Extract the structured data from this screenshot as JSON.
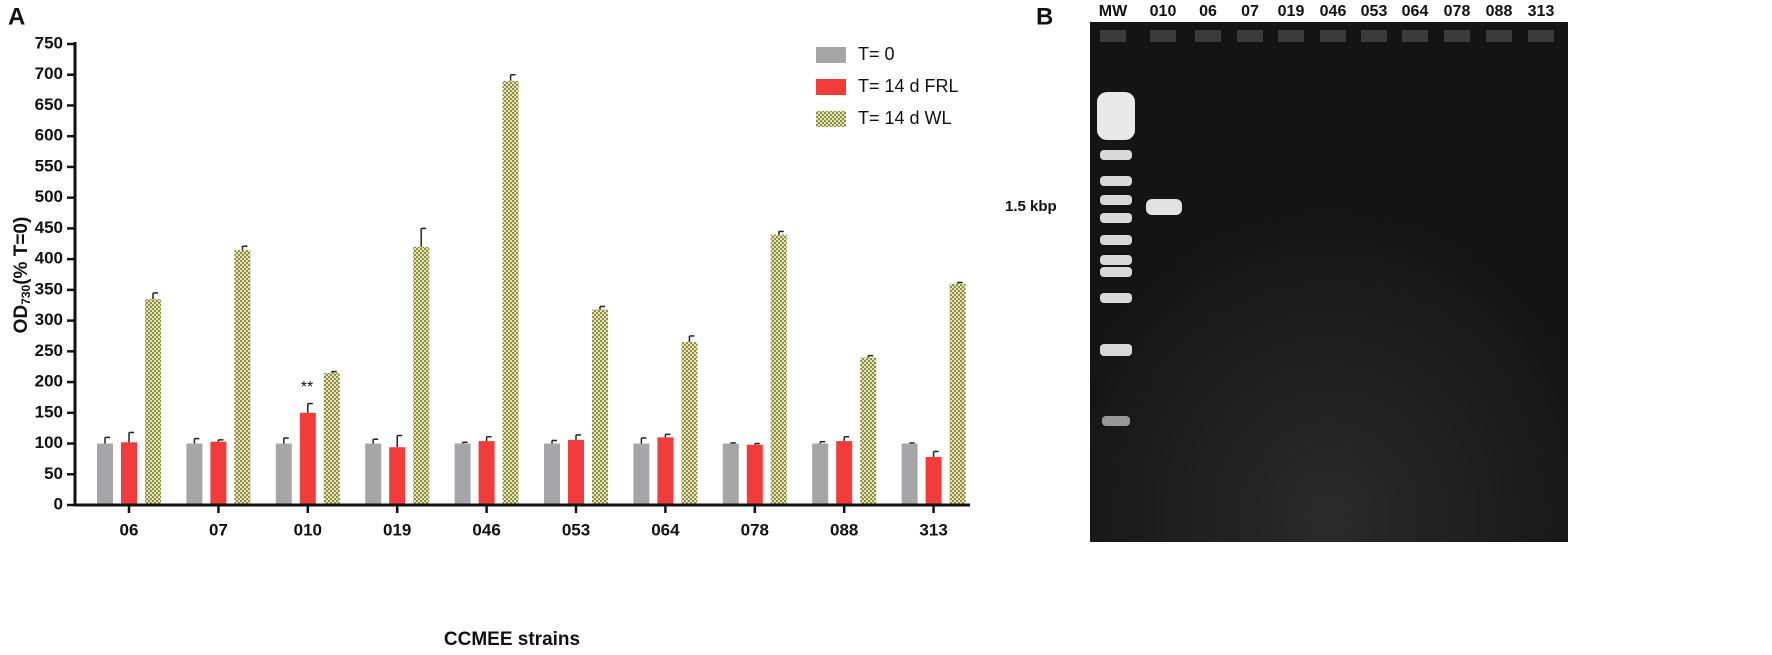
{
  "chart_data": {
    "type": "bar",
    "panel_label": "A",
    "ylabel": "OD",
    "ylabel_sub": "730",
    "ylabel_suffix": "(% T=0)",
    "xlabel": "CCMEE strains",
    "categories": [
      "06",
      "07",
      "010",
      "019",
      "046",
      "053",
      "064",
      "078",
      "088",
      "313"
    ],
    "series": [
      {
        "name": "T= 0",
        "color": "#a6a6a9",
        "values": [
          100,
          100,
          100,
          100,
          100,
          100,
          100,
          100,
          100,
          100
        ],
        "errors": [
          10,
          8,
          9,
          7,
          2,
          5,
          9,
          1,
          3,
          1
        ]
      },
      {
        "name": "T= 14 d FRL",
        "color": "#f23c3c",
        "values": [
          102,
          103,
          150,
          94,
          104,
          106,
          110,
          98,
          104,
          78
        ],
        "errors": [
          16,
          3,
          15,
          19,
          7,
          8,
          5,
          2,
          7,
          9
        ]
      },
      {
        "name": "T= 14 d WL",
        "color": "#a3a25a",
        "pattern": "checker",
        "values": [
          335,
          415,
          215,
          420,
          690,
          318,
          265,
          440,
          240,
          360
        ],
        "errors": [
          10,
          6,
          2,
          30,
          10,
          5,
          10,
          5,
          3,
          2
        ]
      }
    ],
    "annotation": "**",
    "ylim": [
      0,
      750
    ],
    "yticks": [
      0,
      50,
      100,
      150,
      200,
      250,
      300,
      350,
      400,
      450,
      500,
      550,
      600,
      650,
      700,
      750
    ],
    "legend": "top-right"
  },
  "gel": {
    "panel_label": "B",
    "lanes": [
      "MW",
      "010",
      "06",
      "07",
      "019",
      "046",
      "053",
      "064",
      "078",
      "088",
      "313"
    ],
    "marker_label": "1.5 kbp"
  }
}
